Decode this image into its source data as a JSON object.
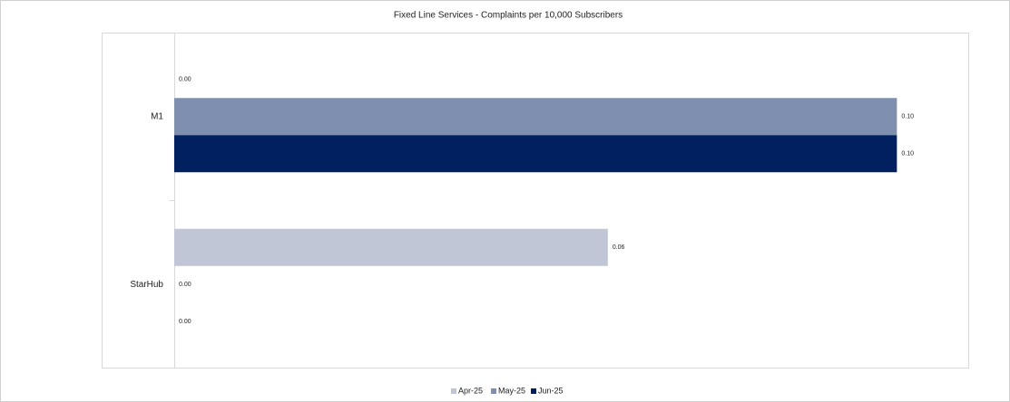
{
  "chart_data": {
    "type": "hbar",
    "title": "Fixed Line Services - Complaints per 10,000 Subscribers",
    "categories": [
      "M1",
      "StarHub"
    ],
    "series": [
      {
        "name": "Apr-25",
        "color": "#c0c6d6",
        "values": [
          0,
          0.06
        ],
        "value_labels": [
          "0.00",
          "0.06"
        ]
      },
      {
        "name": "May-25",
        "color": "#7f8fb0",
        "values": [
          0.1,
          0
        ],
        "value_labels": [
          "0.10",
          "0.00"
        ]
      },
      {
        "name": "Jun-25",
        "color": "#00205f",
        "values": [
          0.1,
          0
        ],
        "value_labels": [
          "0.10",
          "0.00"
        ]
      }
    ],
    "xlim": [
      0,
      0.11
    ],
    "legend": "bottom"
  }
}
